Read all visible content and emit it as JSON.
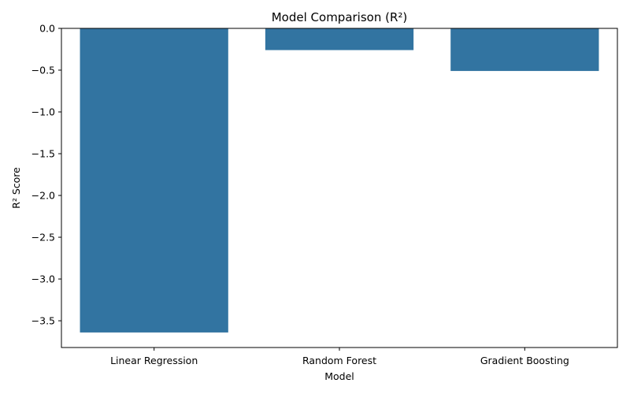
{
  "chart_data": {
    "type": "bar",
    "title": "Model Comparison (R²)",
    "xlabel": "Model",
    "ylabel": "R² Score",
    "categories": [
      "Linear Regression",
      "Random Forest",
      "Gradient Boosting"
    ],
    "values": [
      -3.64,
      -0.26,
      -0.51
    ],
    "ylim": [
      -3.82,
      0.0
    ],
    "yticks": [
      0.0,
      -0.5,
      -1.0,
      -1.5,
      -2.0,
      -2.5,
      -3.0,
      -3.5
    ],
    "ytick_labels": [
      "0.0",
      "−0.5",
      "−1.0",
      "−1.5",
      "−2.0",
      "−2.5",
      "−3.0",
      "−3.5"
    ],
    "bar_color": "#3274a1",
    "grid": false,
    "legend": "none"
  }
}
